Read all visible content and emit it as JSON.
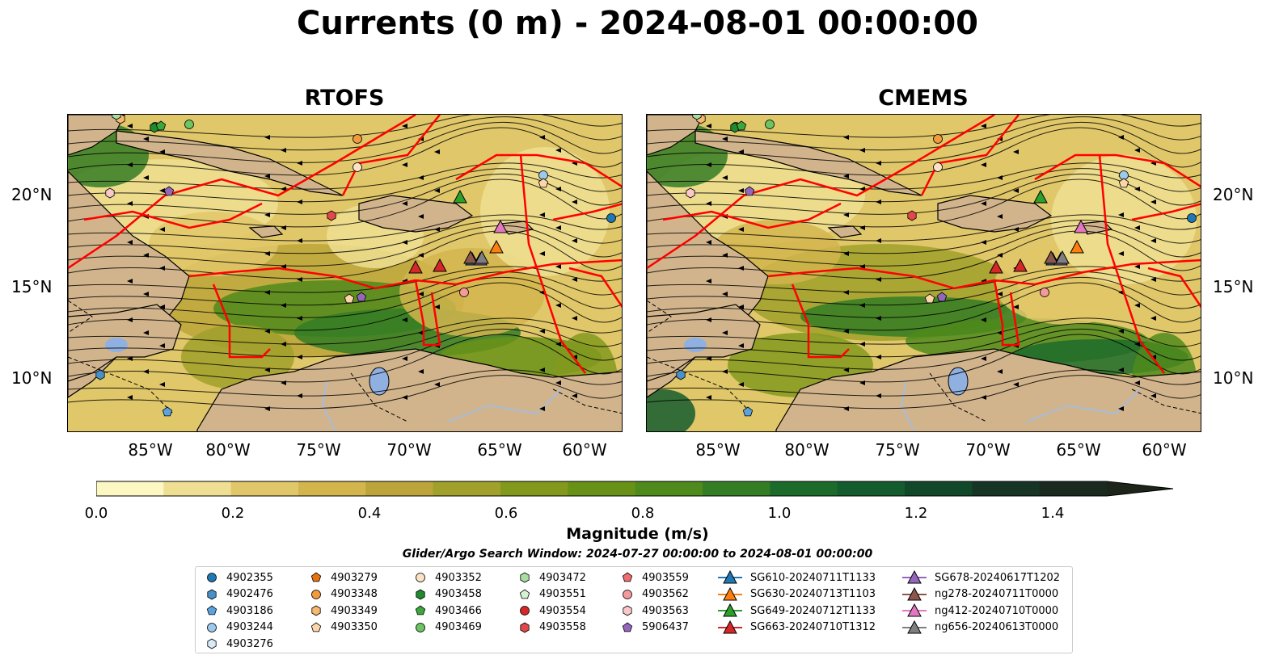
{
  "title": "Currents (0 m) - 2024-08-01 00:00:00",
  "panels": [
    {
      "title": "RTOFS"
    },
    {
      "title": "CMEMS"
    }
  ],
  "lat_labels": [
    "20°N",
    "15°N",
    "10°N"
  ],
  "lon_labels": [
    "85°W",
    "80°W",
    "75°W",
    "70°W",
    "65°W",
    "60°W"
  ],
  "colorbar": {
    "label": "Magnitude (m/s)",
    "ticks": [
      "0.0",
      "0.2",
      "0.4",
      "0.6",
      "0.8",
      "1.0",
      "1.2",
      "1.4"
    ],
    "colors": [
      "#fdf7c3",
      "#efdf92",
      "#e0c769",
      "#d2b54d",
      "#bba43a",
      "#a0a02c",
      "#82991e",
      "#689217",
      "#4f8a1c",
      "#347d24",
      "#1c6b2b",
      "#145c2e",
      "#11482a",
      "#163525",
      "#1a2a1e",
      "#1d2419"
    ]
  },
  "search_window": "Glider/Argo Search Window: 2024-07-27 00:00:00 to 2024-08-01 00:00:00",
  "legend": [
    {
      "label": "4902355",
      "marker": "circle",
      "color": "#1f77b4"
    },
    {
      "label": "4902476",
      "marker": "hexagon",
      "color": "#4a90c8"
    },
    {
      "label": "4903186",
      "marker": "pentagon",
      "color": "#5ba3dd"
    },
    {
      "label": "4903244",
      "marker": "circle",
      "color": "#9dc9ec"
    },
    {
      "label": "4903276",
      "marker": "hexagon",
      "color": "#d7eaf8"
    },
    {
      "label": "4903279",
      "marker": "pentagon",
      "color": "#e6730e"
    },
    {
      "label": "4903348",
      "marker": "circle",
      "color": "#f39a3c"
    },
    {
      "label": "4903349",
      "marker": "hexagon",
      "color": "#f7b870"
    },
    {
      "label": "4903350",
      "marker": "pentagon",
      "color": "#fcd6a8"
    },
    {
      "label": "4903352",
      "marker": "circle",
      "color": "#fde3c6"
    },
    {
      "label": "4903458",
      "marker": "hexagon",
      "color": "#1f8a2e"
    },
    {
      "label": "4903466",
      "marker": "pentagon",
      "color": "#3aa83a"
    },
    {
      "label": "4903469",
      "marker": "circle",
      "color": "#6cc462"
    },
    {
      "label": "4903472",
      "marker": "hexagon",
      "color": "#a8dea0"
    },
    {
      "label": "4903551",
      "marker": "pentagon",
      "color": "#d8f0d2"
    },
    {
      "label": "4903554",
      "marker": "circle",
      "color": "#d62728"
    },
    {
      "label": "4903558",
      "marker": "hexagon",
      "color": "#e0484a"
    },
    {
      "label": "4903559",
      "marker": "pentagon",
      "color": "#ee6e6f"
    },
    {
      "label": "4903562",
      "marker": "circle",
      "color": "#f59a9a"
    },
    {
      "label": "4903563",
      "marker": "hexagon",
      "color": "#fbc8c8"
    },
    {
      "label": "5906437",
      "marker": "pentagon",
      "color": "#9467bd"
    },
    {
      "label": "SG610-20240711T1133",
      "marker": "triangle",
      "color": "#1f77b4"
    },
    {
      "label": "SG630-20240713T1103",
      "marker": "triangle",
      "color": "#ff7f0e"
    },
    {
      "label": "SG649-20240712T1133",
      "marker": "triangle",
      "color": "#2ca02c"
    },
    {
      "label": "SG663-20240710T1312",
      "marker": "triangle",
      "color": "#d62728"
    },
    {
      "label": "SG678-20240617T1202",
      "marker": "triangle",
      "color": "#9467bd"
    },
    {
      "label": "ng278-20240711T0000",
      "marker": "triangle",
      "color": "#8c564b"
    },
    {
      "label": "ng412-20240710T0000",
      "marker": "triangle",
      "color": "#e377c2"
    },
    {
      "label": "ng656-20240613T0000",
      "marker": "triangle",
      "color": "#7f7f7f"
    }
  ],
  "colors": {
    "land": "#d2b48c",
    "eez": "#ff0000",
    "lake": "#8fb0e0",
    "river": "#a8bcd8"
  }
}
